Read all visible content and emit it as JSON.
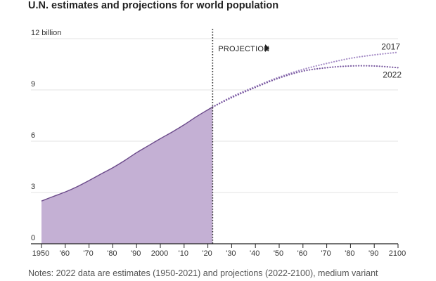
{
  "chart_data": {
    "type": "area",
    "title": "U.N. estimates and projections for world population",
    "note": "Notes: 2022 data are estimates (1950-2021) and projections (2022-2100), medium variant",
    "xlim": [
      1950,
      2100
    ],
    "ylim": [
      0,
      12
    ],
    "y_ticks": [
      {
        "value": 0,
        "label": "0"
      },
      {
        "value": 3,
        "label": "3"
      },
      {
        "value": 6,
        "label": "6"
      },
      {
        "value": 9,
        "label": "9"
      },
      {
        "value": 12,
        "label": "12 billion"
      }
    ],
    "x_ticks": [
      {
        "value": 1950,
        "label": "1950"
      },
      {
        "value": 1960,
        "label": "'60"
      },
      {
        "value": 1970,
        "label": "'70"
      },
      {
        "value": 1980,
        "label": "'80"
      },
      {
        "value": 1990,
        "label": "'90"
      },
      {
        "value": 2000,
        "label": "2000"
      },
      {
        "value": 2010,
        "label": "'10"
      },
      {
        "value": 2020,
        "label": "'20"
      },
      {
        "value": 2030,
        "label": "'30"
      },
      {
        "value": 2040,
        "label": "'40"
      },
      {
        "value": 2050,
        "label": "'50"
      },
      {
        "value": 2060,
        "label": "'60"
      },
      {
        "value": 2070,
        "label": "'70"
      },
      {
        "value": 2080,
        "label": "'80"
      },
      {
        "value": 2090,
        "label": "'90"
      },
      {
        "value": 2100,
        "label": "2100"
      }
    ],
    "projection_year": 2022,
    "projection_label": "PROJECTION",
    "series": [
      {
        "name": "estimates",
        "style": "area",
        "x": [
          1950,
          1955,
          1960,
          1965,
          1970,
          1975,
          1980,
          1985,
          1990,
          1995,
          2000,
          2005,
          2010,
          2015,
          2020,
          2022
        ],
        "values": [
          2.5,
          2.77,
          3.03,
          3.34,
          3.7,
          4.08,
          4.45,
          4.87,
          5.33,
          5.74,
          6.15,
          6.54,
          6.96,
          7.42,
          7.84,
          8.0
        ]
      },
      {
        "name": "2017",
        "style": "dotted",
        "x": [
          2022,
          2030,
          2040,
          2050,
          2060,
          2070,
          2080,
          2090,
          2100
        ],
        "values": [
          8.0,
          8.6,
          9.2,
          9.75,
          10.2,
          10.55,
          10.85,
          11.05,
          11.2
        ]
      },
      {
        "name": "2022",
        "style": "dotted",
        "x": [
          2022,
          2030,
          2040,
          2050,
          2060,
          2070,
          2080,
          2090,
          2100
        ],
        "values": [
          8.0,
          8.55,
          9.15,
          9.7,
          10.1,
          10.3,
          10.4,
          10.4,
          10.3
        ]
      }
    ],
    "colors": {
      "area_fill": "#c4b0d4",
      "area_line": "#6b4a8a",
      "projection_2017": "#a58cc6",
      "projection_2022": "#7a5aa0",
      "divider": "#333333",
      "grid": "#e3e3e3"
    }
  }
}
